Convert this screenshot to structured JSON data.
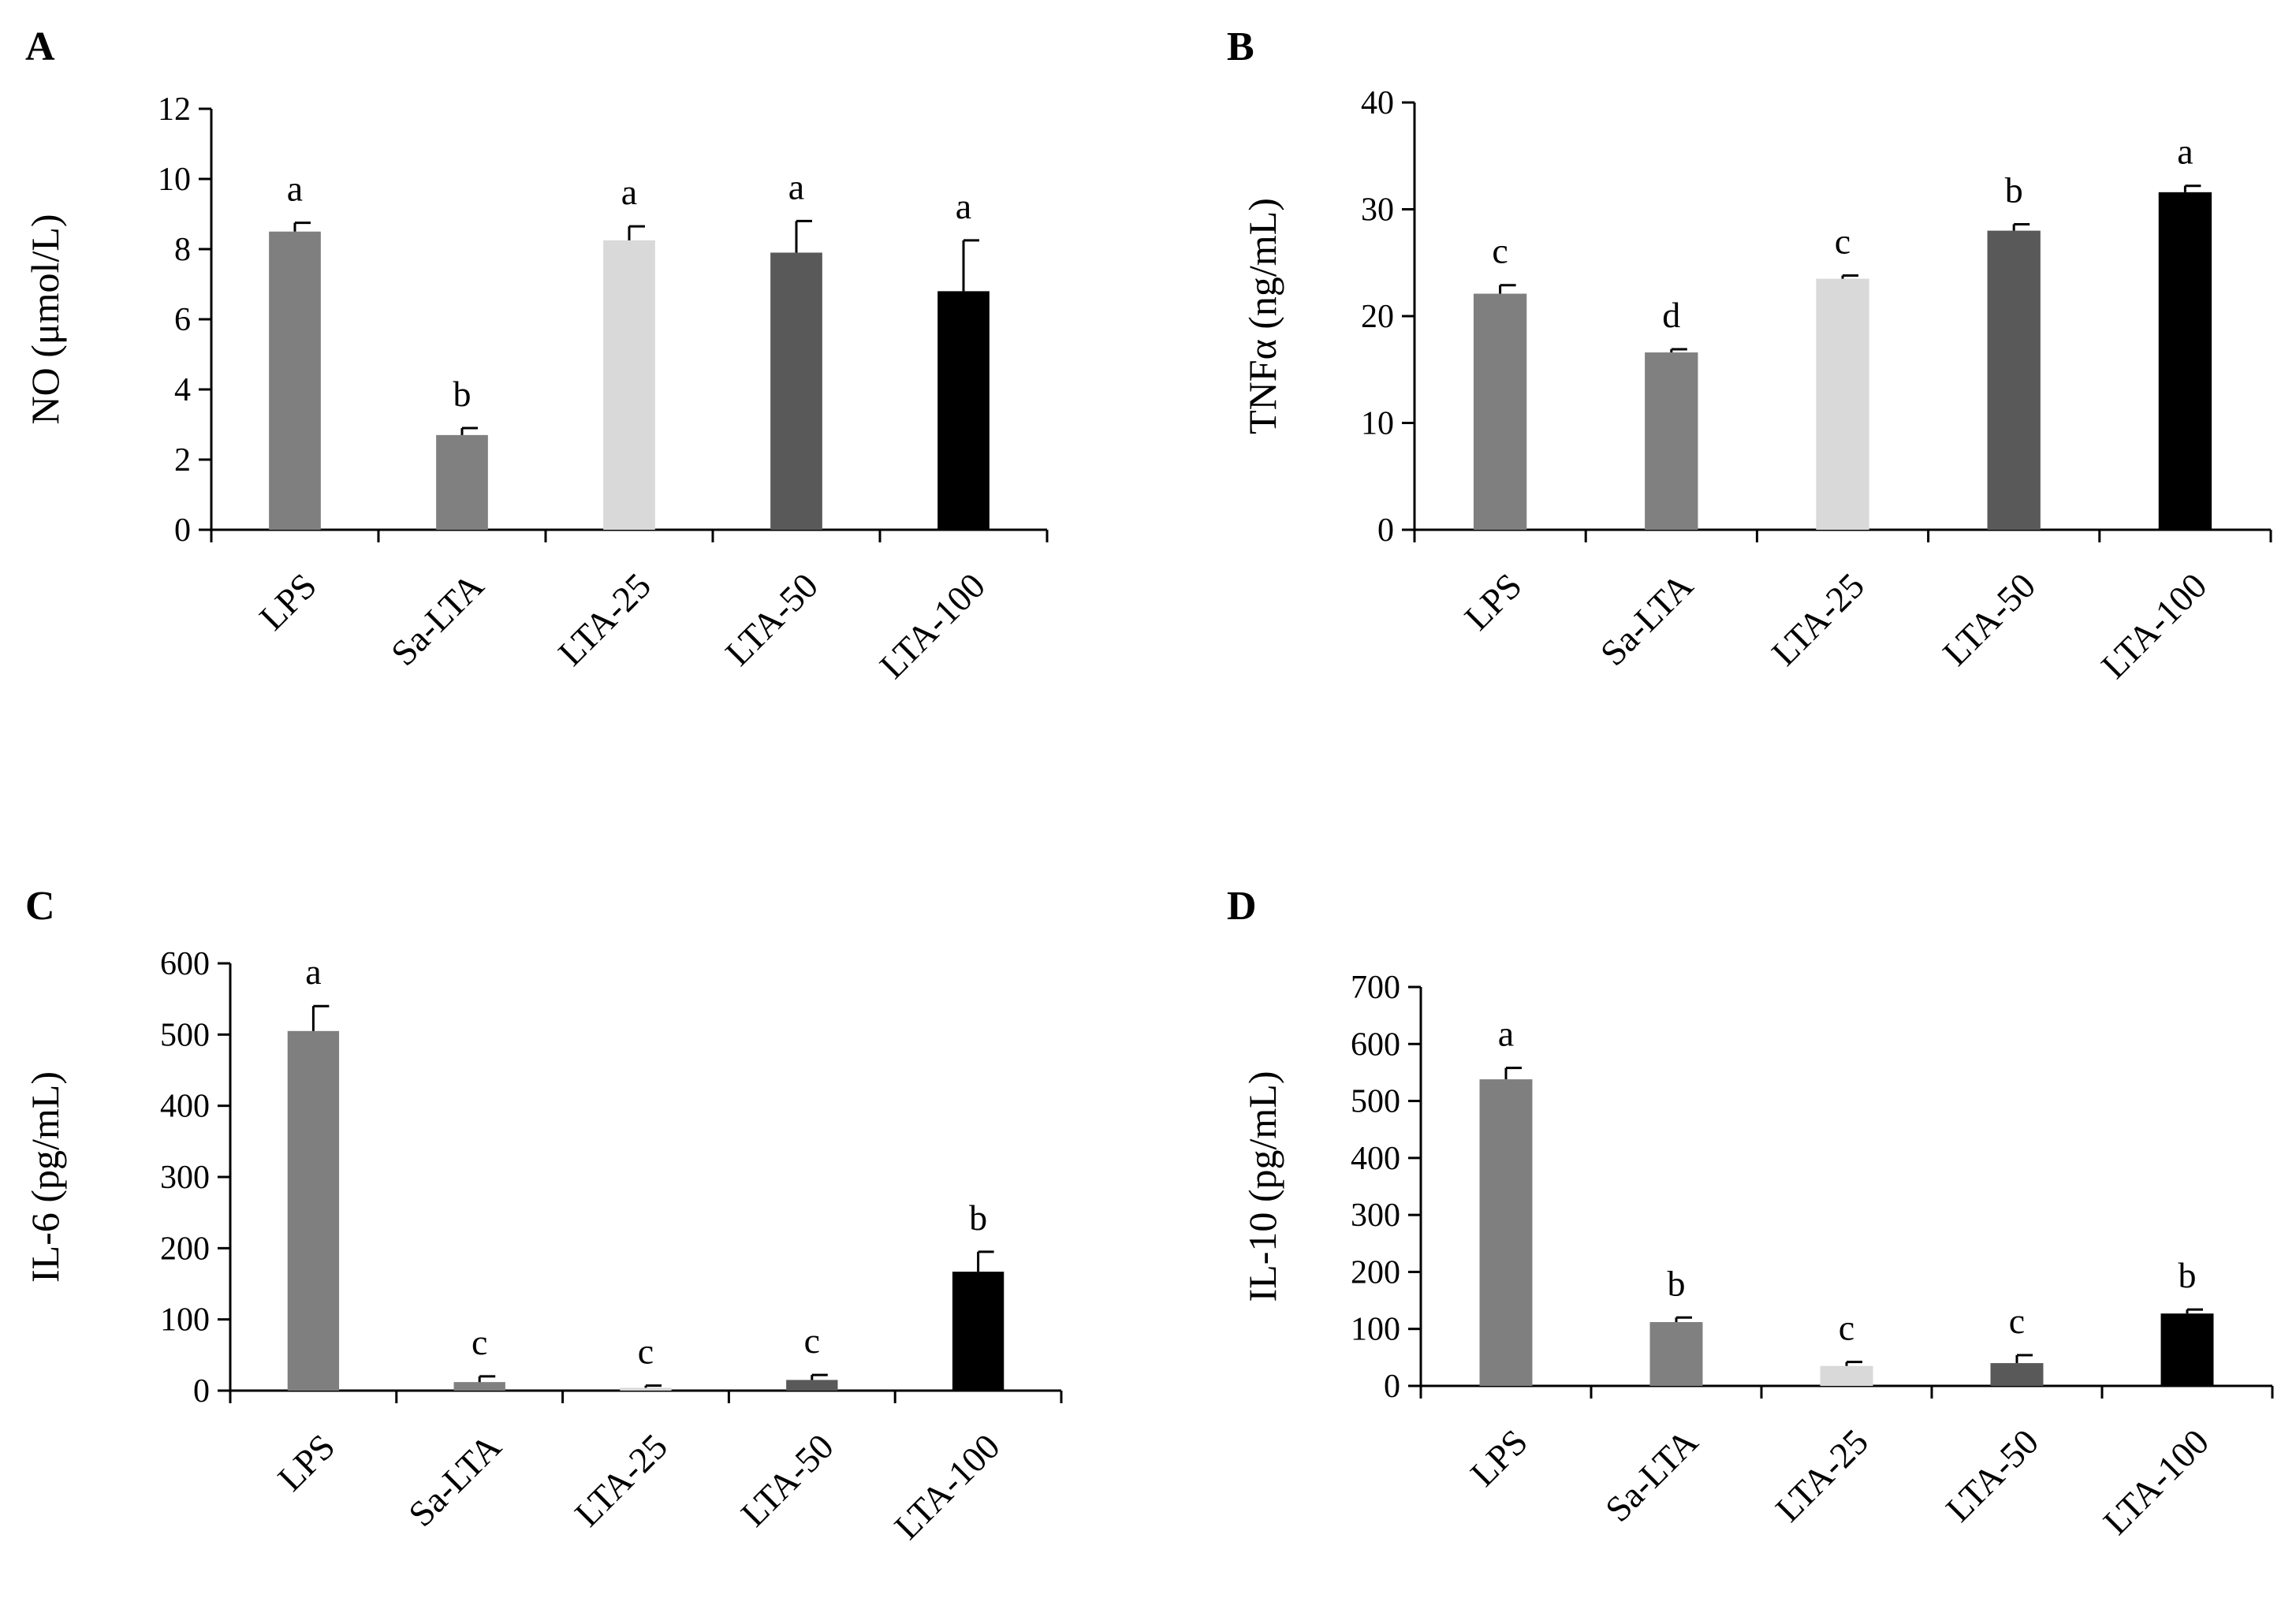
{
  "colors": {
    "LPS": "#7f7f7f",
    "Sa-LTA": "#808080",
    "LTA-25": "#d9d9d9",
    "LTA-50": "#595959",
    "LTA-100": "#000000"
  },
  "chart_data": [
    {
      "type": "bar",
      "panel": "A",
      "ylabel": "NO (μmol/L)",
      "categories": [
        "LPS",
        "Sa-LTA",
        "LTA-25",
        "LTA-50",
        "LTA-100"
      ],
      "values": [
        8.5,
        2.7,
        8.25,
        7.9,
        6.8
      ],
      "errors": [
        0.25,
        0.2,
        0.4,
        0.9,
        1.45
      ],
      "significance": [
        "a",
        "b",
        "a",
        "a",
        "a"
      ],
      "ylim": [
        0,
        12
      ],
      "yticks": [
        0,
        2,
        4,
        6,
        8,
        10,
        12
      ]
    },
    {
      "type": "bar",
      "panel": "B",
      "ylabel": "TNFα (ng/mL)",
      "categories": [
        "LPS",
        "Sa-LTA",
        "LTA-25",
        "LTA-50",
        "LTA-100"
      ],
      "values": [
        22.1,
        16.6,
        23.5,
        28.0,
        31.6
      ],
      "errors": [
        0.8,
        0.3,
        0.3,
        0.6,
        0.6
      ],
      "significance": [
        "c",
        "d",
        "c",
        "b",
        "a"
      ],
      "ylim": [
        0,
        40
      ],
      "yticks": [
        0,
        10,
        20,
        30,
        40
      ]
    },
    {
      "type": "bar",
      "panel": "C",
      "ylabel": "IL-6 (pg/mL)",
      "categories": [
        "LPS",
        "Sa-LTA",
        "LTA-25",
        "LTA-50",
        "LTA-100"
      ],
      "values": [
        505,
        12,
        4,
        15,
        167
      ],
      "errors": [
        35,
        8,
        3,
        7,
        28
      ],
      "significance": [
        "a",
        "c",
        "c",
        "c",
        "b"
      ],
      "ylim": [
        0,
        600
      ],
      "yticks": [
        0,
        100,
        200,
        300,
        400,
        500,
        600
      ]
    },
    {
      "type": "bar",
      "panel": "D",
      "ylabel": "IL-10 (pg/mL)",
      "categories": [
        "LPS",
        "Sa-LTA",
        "LTA-25",
        "LTA-50",
        "LTA-100"
      ],
      "values": [
        538,
        112,
        35,
        40,
        127
      ],
      "errors": [
        20,
        8,
        7,
        14,
        7
      ],
      "significance": [
        "a",
        "b",
        "c",
        "c",
        "b"
      ],
      "ylim": [
        0,
        700
      ],
      "yticks": [
        0,
        100,
        200,
        300,
        400,
        500,
        600,
        700
      ]
    }
  ]
}
